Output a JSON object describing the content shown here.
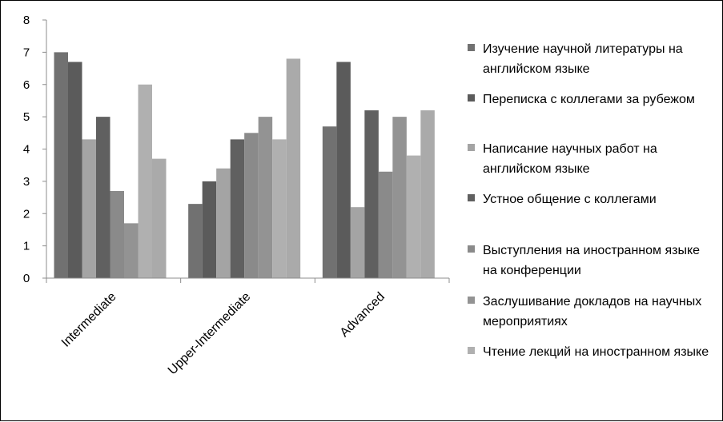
{
  "chart_data": {
    "type": "bar",
    "categories": [
      "Intermediate",
      "Upper-Intermediate",
      "Advanced"
    ],
    "ylim": [
      0,
      8
    ],
    "yticks": [
      "0",
      "1",
      "2",
      "3",
      "4",
      "5",
      "6",
      "7",
      "8"
    ],
    "grid": false,
    "legend_position": "right",
    "series": [
      {
        "name": "Изучение научной литературы на английском языке",
        "color": "#717171",
        "values": [
          7.0,
          2.3,
          4.7
        ]
      },
      {
        "name": "Переписка с коллегами за рубежом",
        "color": "#5b5b5b",
        "values": [
          6.7,
          3.0,
          6.7
        ]
      },
      {
        "name": "Написание научных работ на английском языке",
        "color": "#a4a4a4",
        "values": [
          4.3,
          3.4,
          2.2
        ]
      },
      {
        "name": "Устное общение с коллегами",
        "color": "#606060",
        "values": [
          5.0,
          4.3,
          5.2
        ]
      },
      {
        "name": "Выступления на иностранном языке на конференции",
        "color": "#8a8a8a",
        "values": [
          2.7,
          4.5,
          3.3
        ]
      },
      {
        "name": "Заслушивание докладов на научных мероприятиях",
        "color": "#939393",
        "values": [
          1.7,
          5.0,
          5.0
        ]
      },
      {
        "name": "Чтение лекций на иностранном языке",
        "color": "#b0b0b0",
        "values": [
          6.0,
          4.3,
          3.8
        ]
      },
      {
        "name": "",
        "color": "#aaaaaa",
        "values": [
          3.7,
          6.8,
          5.2
        ]
      }
    ]
  }
}
